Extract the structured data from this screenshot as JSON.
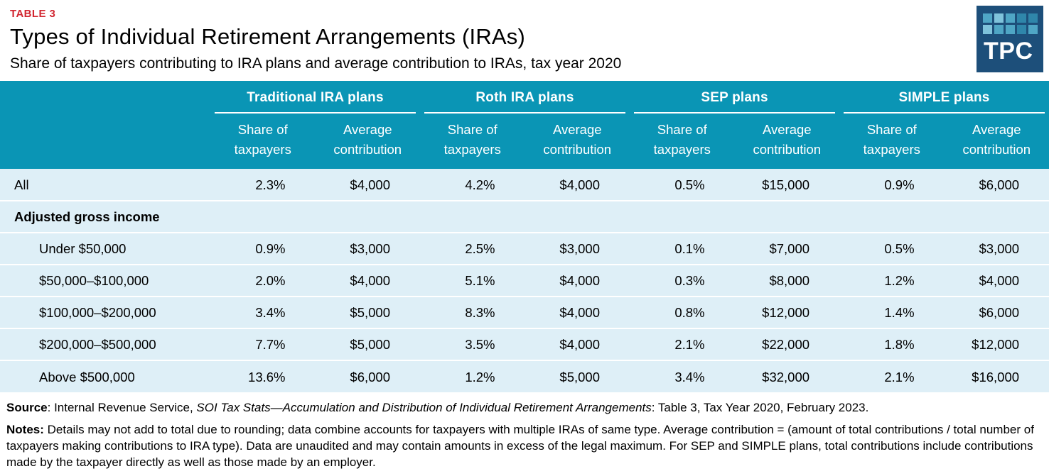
{
  "page": {
    "eyebrow": "TABLE 3",
    "title": "Types of Individual Retirement Arrangements (IRAs)",
    "subtitle": "Share of taxpayers contributing to IRA plans and average contribution to IRAs, tax year 2020"
  },
  "logo": {
    "text": "TPC",
    "bg_color": "#1D4F7A",
    "square_colors": {
      "light": "#7FC3DB",
      "medium": "#4FA6C5",
      "dark": "#2F86AA"
    }
  },
  "colors": {
    "header_teal": "#0A95B5",
    "row_blue": "#DEEFF7",
    "eyebrow_red": "#D22630"
  },
  "chart_data": {
    "type": "table",
    "title": "Types of Individual Retirement Arrangements (IRAs)",
    "subtitle": "Share of taxpayers contributing to IRA plans and average contribution to IRAs, tax year 2020",
    "column_groups": [
      "Traditional IRA plans",
      "Roth IRA plans",
      "SEP plans",
      "SIMPLE plans"
    ],
    "sub_headers": [
      "Share of taxpayers",
      "Average contribution"
    ],
    "rows": [
      {
        "label": "All",
        "values": [
          "2.3%",
          "$4,000",
          "4.2%",
          "$4,000",
          "0.5%",
          "$15,000",
          "0.9%",
          "$6,000"
        ]
      },
      {
        "label": "Adjusted gross income",
        "section": true,
        "values": []
      },
      {
        "label": "Under $50,000",
        "indent": true,
        "values": [
          "0.9%",
          "$3,000",
          "2.5%",
          "$3,000",
          "0.1%",
          "$7,000",
          "0.5%",
          "$3,000"
        ]
      },
      {
        "label": "$50,000–$100,000",
        "indent": true,
        "values": [
          "2.0%",
          "$4,000",
          "5.1%",
          "$4,000",
          "0.3%",
          "$8,000",
          "1.2%",
          "$4,000"
        ]
      },
      {
        "label": "$100,000–$200,000",
        "indent": true,
        "values": [
          "3.4%",
          "$5,000",
          "8.3%",
          "$4,000",
          "0.8%",
          "$12,000",
          "1.4%",
          "$6,000"
        ]
      },
      {
        "label": "$200,000–$500,000",
        "indent": true,
        "values": [
          "7.7%",
          "$5,000",
          "3.5%",
          "$4,000",
          "2.1%",
          "$22,000",
          "1.8%",
          "$12,000"
        ]
      },
      {
        "label": "Above $500,000",
        "indent": true,
        "values": [
          "13.6%",
          "$6,000",
          "1.2%",
          "$5,000",
          "3.4%",
          "$32,000",
          "2.1%",
          "$16,000"
        ]
      }
    ]
  },
  "footer": {
    "source_label": "Source",
    "source_text": ": Internal Revenue Service, ",
    "source_italic": "SOI Tax Stats—Accumulation and Distribution of Individual Retirement Arrangements",
    "source_end": ": Table 3, Tax Year 2020, February 2023.",
    "notes_label": "Notes:",
    "notes_text": " Details may not add to total due to rounding; data combine accounts for taxpayers with multiple IRAs of same type. Average contribution = (amount of total contributions / total number of taxpayers making contributions to IRA type). Data are unaudited and may contain amounts in excess of the legal maximum. For SEP and SIMPLE plans, total contributions include contributions made by the taxpayer directly as well as those made by an employer."
  }
}
